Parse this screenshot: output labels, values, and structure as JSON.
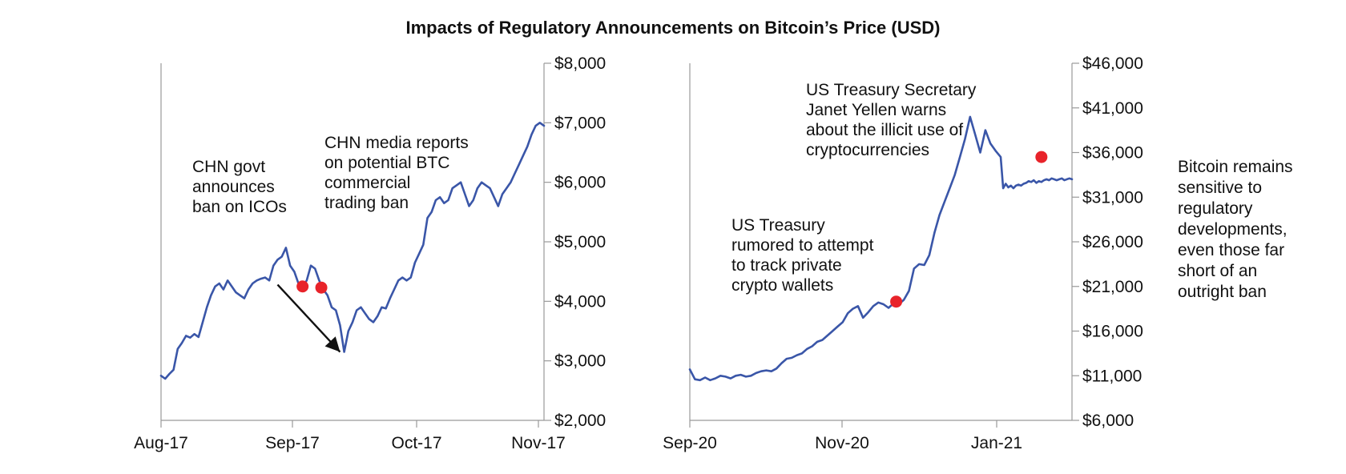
{
  "title": "Impacts of Regulatory Announcements on Bitcoin’s Price (USD)",
  "side_note_lines": [
    "Bitcoin remains",
    "sensitive to",
    "regulatory",
    "developments,",
    "even those far",
    "short of an",
    "outright ban"
  ],
  "colors": {
    "line": "#3a56a8",
    "marker": "#e8232a",
    "axis": "#888888",
    "arrow": "#111111",
    "text": "#111111"
  },
  "chart_data": [
    {
      "type": "line",
      "title": "",
      "xlabel": "",
      "ylabel": "",
      "x_ticks": [
        "Aug-17",
        "Sep-17",
        "Oct-17",
        "Nov-17"
      ],
      "y_ticks": [
        "$2,000",
        "$3,000",
        "$4,000",
        "$5,000",
        "$6,000",
        "$7,000",
        "$8,000"
      ],
      "ylim": [
        2000,
        8000
      ],
      "xlim": [
        0,
        92
      ],
      "y_axis_side": "right",
      "series": [
        {
          "x": [
            0,
            1,
            2,
            3,
            4,
            5,
            6,
            7,
            8,
            9,
            10,
            11,
            12,
            13,
            14,
            15,
            16,
            17,
            18,
            19,
            20,
            21,
            22,
            23,
            24,
            25,
            26,
            27,
            28,
            29,
            30,
            31,
            32,
            33,
            34,
            35,
            36,
            37,
            38,
            39,
            40,
            41,
            42,
            43,
            44,
            45,
            46,
            47,
            48,
            49,
            50,
            51,
            52,
            53,
            54,
            55,
            56,
            57,
            58,
            59,
            60,
            61,
            62,
            63,
            64,
            65,
            66,
            67,
            68,
            69,
            70,
            71,
            72,
            73,
            74,
            75,
            76,
            77,
            78,
            79,
            80,
            81,
            82,
            83,
            84,
            85,
            86,
            87,
            88,
            89,
            90,
            91,
            92
          ],
          "y": [
            2750,
            2700,
            2780,
            2850,
            3200,
            3300,
            3420,
            3390,
            3450,
            3400,
            3650,
            3900,
            4100,
            4250,
            4300,
            4200,
            4350,
            4250,
            4150,
            4100,
            4050,
            4200,
            4300,
            4350,
            4380,
            4400,
            4350,
            4600,
            4700,
            4750,
            4900,
            4600,
            4500,
            4300,
            4250,
            4350,
            4600,
            4550,
            4350,
            4200,
            4100,
            3900,
            3850,
            3600,
            3150,
            3500,
            3650,
            3850,
            3900,
            3800,
            3700,
            3650,
            3750,
            3900,
            3880,
            4050,
            4200,
            4350,
            4400,
            4350,
            4400,
            4650,
            4800,
            4950,
            5400,
            5500,
            5700,
            5750,
            5650,
            5700,
            5900,
            5950,
            6000,
            5800,
            5600,
            5700,
            5900,
            6000,
            5950,
            5900,
            5750,
            5600,
            5800,
            5900,
            6000,
            6150,
            6300,
            6450,
            6600,
            6800,
            6950,
            7000,
            6950
          ]
        }
      ],
      "markers": [
        {
          "x": 34,
          "y": 4250
        },
        {
          "x": 38.5,
          "y": 4230
        }
      ],
      "arrow": {
        "from": {
          "x": 28,
          "y": 4280
        },
        "to": {
          "x": 43,
          "y": 3150
        }
      },
      "annotations": [
        {
          "lines": [
            "CHN govt",
            "announces",
            "ban on ICOs"
          ]
        },
        {
          "lines": [
            "CHN media reports",
            "on potential BTC",
            "commercial",
            "trading ban"
          ]
        }
      ]
    },
    {
      "type": "line",
      "title": "",
      "xlabel": "",
      "ylabel": "",
      "x_ticks": [
        "Sep-20",
        "Nov-20",
        "Jan-21"
      ],
      "y_ticks": [
        "$6,000",
        "$11,000",
        "$16,000",
        "$21,000",
        "$26,000",
        "$31,000",
        "$36,000",
        "$41,000",
        "$46,000"
      ],
      "ylim": [
        6000,
        46000
      ],
      "xlim": [
        0,
        150
      ],
      "y_axis_side": "right",
      "series": [
        {
          "x": [
            0,
            2,
            4,
            6,
            8,
            10,
            12,
            14,
            16,
            18,
            20,
            22,
            24,
            26,
            28,
            30,
            32,
            34,
            36,
            38,
            40,
            42,
            44,
            46,
            48,
            50,
            52,
            54,
            56,
            58,
            60,
            62,
            64,
            66,
            68,
            70,
            72,
            74,
            76,
            78,
            80,
            82,
            84,
            86,
            88,
            90,
            92,
            94,
            96,
            98,
            100,
            102,
            104,
            106,
            108,
            110,
            112,
            114,
            116,
            118,
            120,
            122,
            123,
            124,
            125,
            126,
            127,
            128,
            129,
            130,
            131,
            132,
            133,
            134,
            135,
            136,
            137,
            138,
            139,
            140,
            141,
            142,
            143,
            144,
            145,
            146,
            147,
            148,
            149,
            150
          ],
          "y": [
            11700,
            10600,
            10500,
            10800,
            10500,
            10700,
            11000,
            10900,
            10700,
            11000,
            11100,
            10900,
            11000,
            11300,
            11500,
            11600,
            11500,
            11800,
            12400,
            12900,
            13000,
            13300,
            13500,
            14000,
            14300,
            14800,
            15000,
            15500,
            16000,
            16500,
            17000,
            18000,
            18500,
            18800,
            17500,
            18100,
            18800,
            19200,
            19000,
            18600,
            19100,
            19000,
            19500,
            20500,
            23000,
            23500,
            23400,
            24500,
            27000,
            29000,
            30500,
            32000,
            33500,
            35500,
            37500,
            40000,
            38000,
            36000,
            38500,
            37000,
            36200,
            35500,
            32000,
            32500,
            32100,
            32300,
            32000,
            32300,
            32400,
            32300,
            32500,
            32600,
            32800,
            32700,
            32900,
            32600,
            32800,
            32700,
            32900,
            33000,
            32900,
            33100,
            33000,
            32900,
            33000,
            33100,
            32900,
            33000,
            33100,
            33000
          ]
        }
      ],
      "markers": [
        {
          "x": 81,
          "y": 19300
        },
        {
          "x": 138,
          "y": 35500
        }
      ],
      "annotations": [
        {
          "lines": [
            "US Treasury",
            "rumored to attempt",
            "to track private",
            "crypto wallets"
          ]
        },
        {
          "lines": [
            "US Treasury Secretary",
            "Janet Yellen warns",
            "about the illicit use of",
            "cryptocurrencies"
          ]
        }
      ]
    }
  ]
}
